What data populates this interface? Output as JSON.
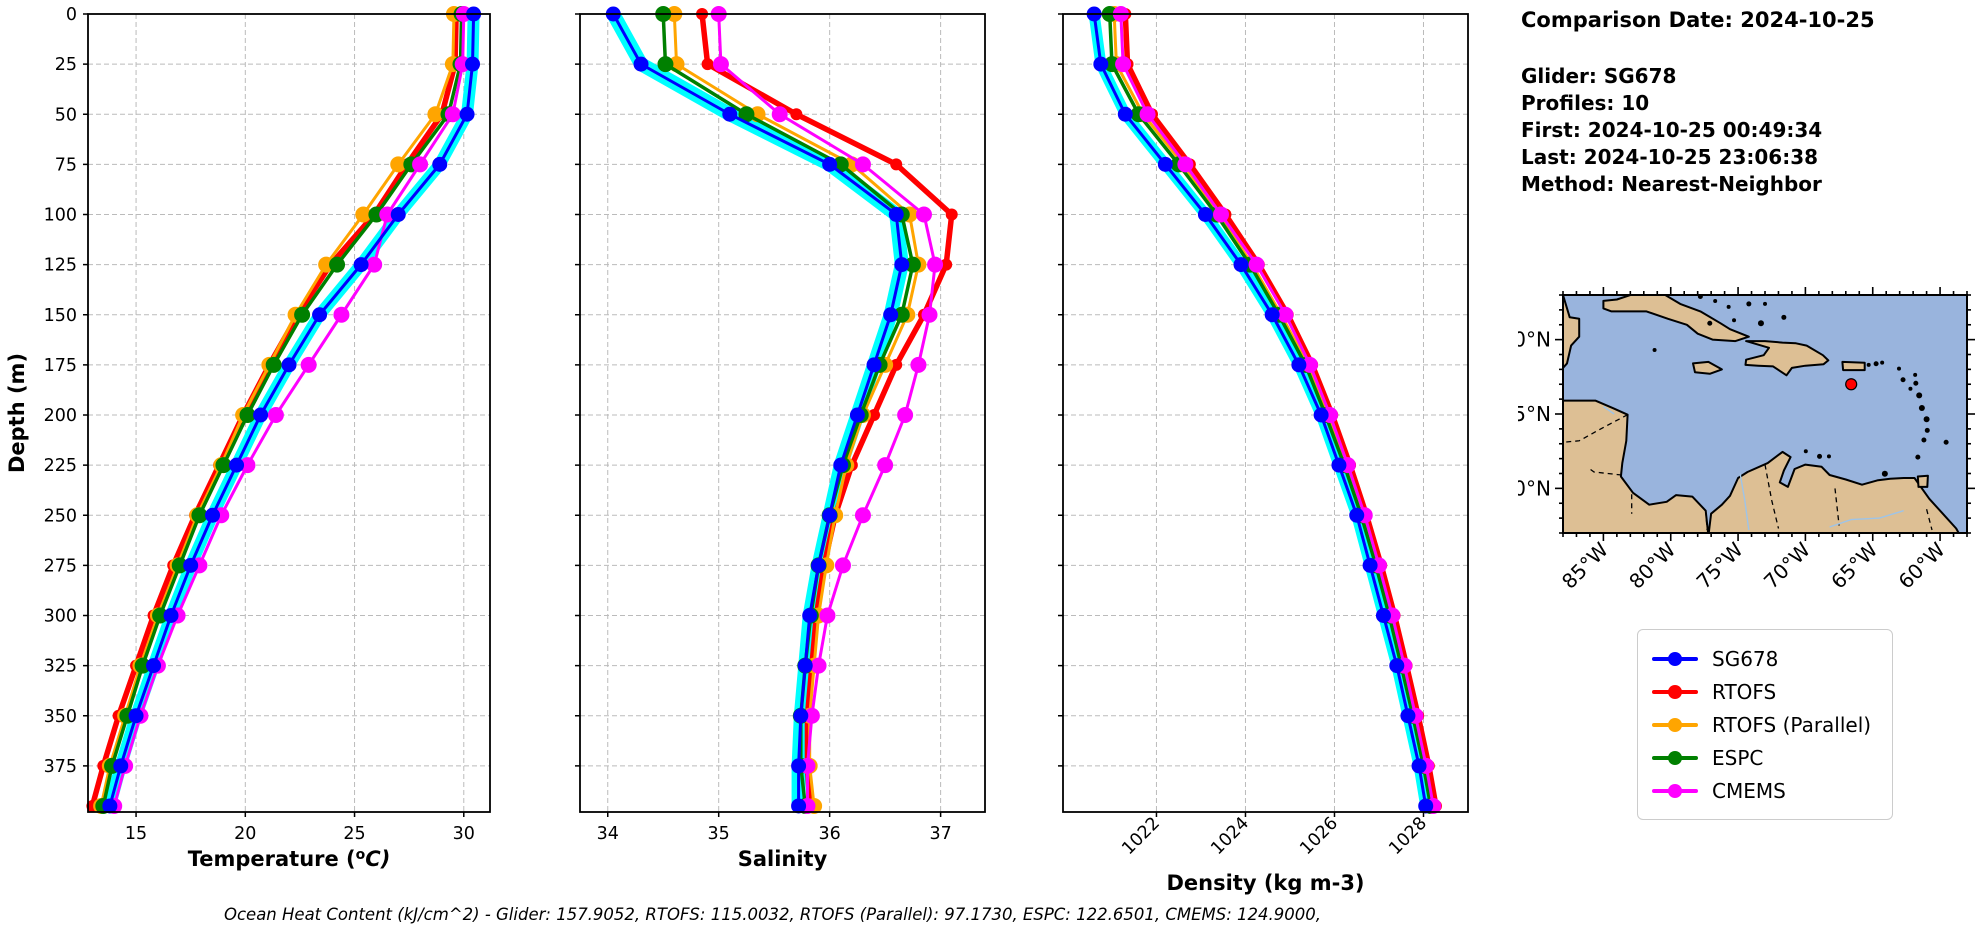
{
  "info": {
    "comparison_date": "Comparison Date: 2024-10-25",
    "glider": "Glider: SG678",
    "profiles": "Profiles: 10",
    "first": "First: 2024-10-25 00:49:34",
    "last": "Last: 2024-10-25 23:06:38",
    "method": "Method: Nearest-Neighbor"
  },
  "footer_text": "Ocean Heat Content (kJ/cm^2) - Glider: 157.9052,  RTOFS: 115.0032,  RTOFS (Parallel): 97.1730,  ESPC: 122.6501,  CMEMS: 124.9000,",
  "legend": {
    "items": [
      {
        "label": "SG678",
        "color": "#0000ff"
      },
      {
        "label": "RTOFS",
        "color": "#ff0000"
      },
      {
        "label": "RTOFS (Parallel)",
        "color": "#ffa500"
      },
      {
        "label": "ESPC",
        "color": "#008000"
      },
      {
        "label": "CMEMS",
        "color": "#ff00ff"
      }
    ]
  },
  "map": {
    "ocean_color": "#99b4dd",
    "land_color": "#ddbf94",
    "coast_color": "#000000",
    "marker": {
      "lon": -66.6,
      "lat": 17.0,
      "color": "#ff0000"
    },
    "lon_ticks": [
      {
        "label": "85°W",
        "lon": -85
      },
      {
        "label": "80°W",
        "lon": -80
      },
      {
        "label": "75°W",
        "lon": -75
      },
      {
        "label": "70°W",
        "lon": -70
      },
      {
        "label": "65°W",
        "lon": -65
      },
      {
        "label": "60°W",
        "lon": -60
      }
    ],
    "lat_ticks": [
      {
        "label": "20°N",
        "lat": 20
      },
      {
        "label": "15°N",
        "lat": 15
      },
      {
        "label": "10°N",
        "lat": 10
      }
    ],
    "extent": {
      "lon_min": -88,
      "lon_max": -58,
      "lat_min": 7,
      "lat_max": 23
    }
  },
  "chart_data": {
    "type": "line",
    "ylabel": "Depth (m)",
    "ylim": [
      0,
      398
    ],
    "yticks": [
      0,
      25,
      50,
      75,
      100,
      125,
      150,
      175,
      200,
      225,
      250,
      275,
      300,
      325,
      350,
      375
    ],
    "grid": true,
    "legend_position": "lower right (outside, figure level)",
    "depths": [
      0,
      25,
      50,
      75,
      100,
      125,
      150,
      175,
      200,
      225,
      250,
      275,
      300,
      325,
      350,
      375,
      395
    ],
    "panels": [
      {
        "name": "temperature",
        "xlabel": "Temperature (°C)",
        "xlim": [
          12.8,
          31.2
        ],
        "xticks": [
          15,
          20,
          25,
          30
        ],
        "xtick_rotated": false,
        "show_depth_labels": true,
        "series": [
          {
            "name": "SG678 raw swath",
            "color": "#00ffff",
            "lw": 12,
            "ms": 0,
            "values": [
              30.45,
              30.4,
              30.15,
              28.9,
              27.0,
              25.3,
              23.4,
              22.0,
              20.7,
              19.6,
              18.5,
              17.5,
              16.6,
              15.8,
              15.0,
              14.3,
              13.8
            ]
          },
          {
            "name": "RTOFS",
            "color": "#ff0000",
            "lw": 5.5,
            "ms": 6,
            "values": [
              29.65,
              29.6,
              29.0,
              27.4,
              25.9,
              23.9,
              22.4,
              21.1,
              19.9,
              18.8,
              17.7,
              16.7,
              15.8,
              15.0,
              14.2,
              13.5,
              13.0
            ]
          },
          {
            "name": "RTOFS (Parallel)",
            "color": "#ffa500",
            "lw": 3,
            "ms": 8,
            "values": [
              29.55,
              29.5,
              28.7,
              27.0,
              25.4,
              23.7,
              22.3,
              21.1,
              19.9,
              18.9,
              17.8,
              16.9,
              16.0,
              15.2,
              14.5,
              13.8,
              13.4
            ]
          },
          {
            "name": "ESPC",
            "color": "#008000",
            "lw": 3.5,
            "ms": 8,
            "values": [
              29.9,
              29.85,
              29.3,
              27.6,
              26.0,
              24.2,
              22.6,
              21.3,
              20.1,
              19.0,
              17.9,
              17.0,
              16.1,
              15.3,
              14.6,
              13.9,
              13.5
            ]
          },
          {
            "name": "CMEMS",
            "color": "#ff00ff",
            "lw": 3,
            "ms": 8,
            "values": [
              30.0,
              29.95,
              29.5,
              28.0,
              26.5,
              25.9,
              24.4,
              22.9,
              21.4,
              20.1,
              18.9,
              17.9,
              16.9,
              16.0,
              15.2,
              14.5,
              14.0
            ]
          },
          {
            "name": "SG678",
            "color": "#0000ff",
            "lw": 3,
            "ms": 7.5,
            "values": [
              30.45,
              30.4,
              30.15,
              28.9,
              27.0,
              25.3,
              23.4,
              22.0,
              20.7,
              19.6,
              18.5,
              17.5,
              16.6,
              15.8,
              15.0,
              14.3,
              13.8
            ]
          }
        ]
      },
      {
        "name": "salinity",
        "xlabel": "Salinity",
        "xlim": [
          33.75,
          37.4
        ],
        "xticks": [
          34,
          35,
          36,
          37
        ],
        "xtick_rotated": false,
        "show_depth_labels": false,
        "series": [
          {
            "name": "SG678 raw swath",
            "color": "#00ffff",
            "lw": 14,
            "ms": 0,
            "values": [
              34.05,
              34.3,
              35.1,
              36.0,
              36.6,
              36.65,
              36.55,
              36.4,
              36.25,
              36.1,
              36.0,
              35.9,
              35.82,
              35.78,
              35.74,
              35.72,
              35.72
            ]
          },
          {
            "name": "RTOFS",
            "color": "#ff0000",
            "lw": 5.5,
            "ms": 6,
            "values": [
              34.85,
              34.9,
              35.7,
              36.6,
              37.1,
              37.05,
              36.85,
              36.6,
              36.4,
              36.2,
              36.05,
              35.95,
              35.88,
              35.84,
              35.8,
              35.8,
              35.82
            ]
          },
          {
            "name": "RTOFS (Parallel)",
            "color": "#ffa500",
            "lw": 3,
            "ms": 8,
            "values": [
              34.6,
              34.62,
              35.35,
              36.2,
              36.72,
              36.8,
              36.7,
              36.5,
              36.3,
              36.15,
              36.05,
              35.97,
              35.9,
              35.86,
              35.82,
              35.82,
              35.86
            ]
          },
          {
            "name": "ESPC",
            "color": "#008000",
            "lw": 3.5,
            "ms": 8,
            "values": [
              34.5,
              34.52,
              35.25,
              36.1,
              36.65,
              36.75,
              36.65,
              36.45,
              36.28,
              36.12,
              36.0,
              35.9,
              35.83,
              35.78,
              35.74,
              35.74,
              35.78
            ]
          },
          {
            "name": "CMEMS",
            "color": "#ff00ff",
            "lw": 3,
            "ms": 8,
            "values": [
              35.0,
              35.02,
              35.55,
              36.3,
              36.85,
              36.95,
              36.9,
              36.8,
              36.68,
              36.5,
              36.3,
              36.12,
              35.98,
              35.9,
              35.84,
              35.8,
              35.8
            ]
          },
          {
            "name": "SG678",
            "color": "#0000ff",
            "lw": 3,
            "ms": 7.5,
            "values": [
              34.05,
              34.3,
              35.1,
              36.0,
              36.6,
              36.65,
              36.55,
              36.4,
              36.25,
              36.1,
              36.0,
              35.9,
              35.82,
              35.78,
              35.74,
              35.72,
              35.72
            ]
          }
        ]
      },
      {
        "name": "density",
        "xlabel": "Density (kg m-3)",
        "xlim": [
          1019.9,
          1029.0
        ],
        "xticks": [
          1022,
          1024,
          1026,
          1028
        ],
        "xtick_rotated": true,
        "show_depth_labels": false,
        "series": [
          {
            "name": "SG678 raw swath",
            "color": "#00ffff",
            "lw": 11,
            "ms": 0,
            "values": [
              1020.6,
              1020.75,
              1021.3,
              1022.2,
              1023.1,
              1023.9,
              1024.6,
              1025.2,
              1025.7,
              1026.1,
              1026.5,
              1026.8,
              1027.1,
              1027.4,
              1027.65,
              1027.9,
              1028.05
            ]
          },
          {
            "name": "RTOFS",
            "color": "#ff0000",
            "lw": 5.5,
            "ms": 6,
            "values": [
              1021.3,
              1021.35,
              1021.9,
              1022.75,
              1023.55,
              1024.3,
              1024.95,
              1025.5,
              1025.95,
              1026.35,
              1026.72,
              1027.05,
              1027.35,
              1027.62,
              1027.88,
              1028.12,
              1028.28
            ]
          },
          {
            "name": "RTOFS (Parallel)",
            "color": "#ffa500",
            "lw": 3,
            "ms": 8,
            "values": [
              1021.05,
              1021.1,
              1021.7,
              1022.6,
              1023.4,
              1024.15,
              1024.8,
              1025.4,
              1025.85,
              1026.25,
              1026.62,
              1026.95,
              1027.25,
              1027.52,
              1027.78,
              1028.02,
              1028.18
            ]
          },
          {
            "name": "ESPC",
            "color": "#008000",
            "lw": 3.5,
            "ms": 8,
            "values": [
              1020.95,
              1021.0,
              1021.6,
              1022.5,
              1023.35,
              1024.1,
              1024.75,
              1025.35,
              1025.8,
              1026.22,
              1026.6,
              1026.93,
              1027.23,
              1027.5,
              1027.76,
              1028.0,
              1028.16
            ]
          },
          {
            "name": "CMEMS",
            "color": "#ff00ff",
            "lw": 3,
            "ms": 8,
            "values": [
              1021.2,
              1021.25,
              1021.8,
              1022.65,
              1023.45,
              1024.25,
              1024.9,
              1025.45,
              1025.9,
              1026.3,
              1026.68,
              1027.0,
              1027.3,
              1027.57,
              1027.82,
              1028.06,
              1028.22
            ]
          },
          {
            "name": "SG678",
            "color": "#0000ff",
            "lw": 3,
            "ms": 7.5,
            "values": [
              1020.6,
              1020.75,
              1021.3,
              1022.2,
              1023.1,
              1023.9,
              1024.6,
              1025.2,
              1025.7,
              1026.1,
              1026.5,
              1026.8,
              1027.1,
              1027.4,
              1027.65,
              1027.9,
              1028.05
            ]
          }
        ]
      }
    ]
  }
}
